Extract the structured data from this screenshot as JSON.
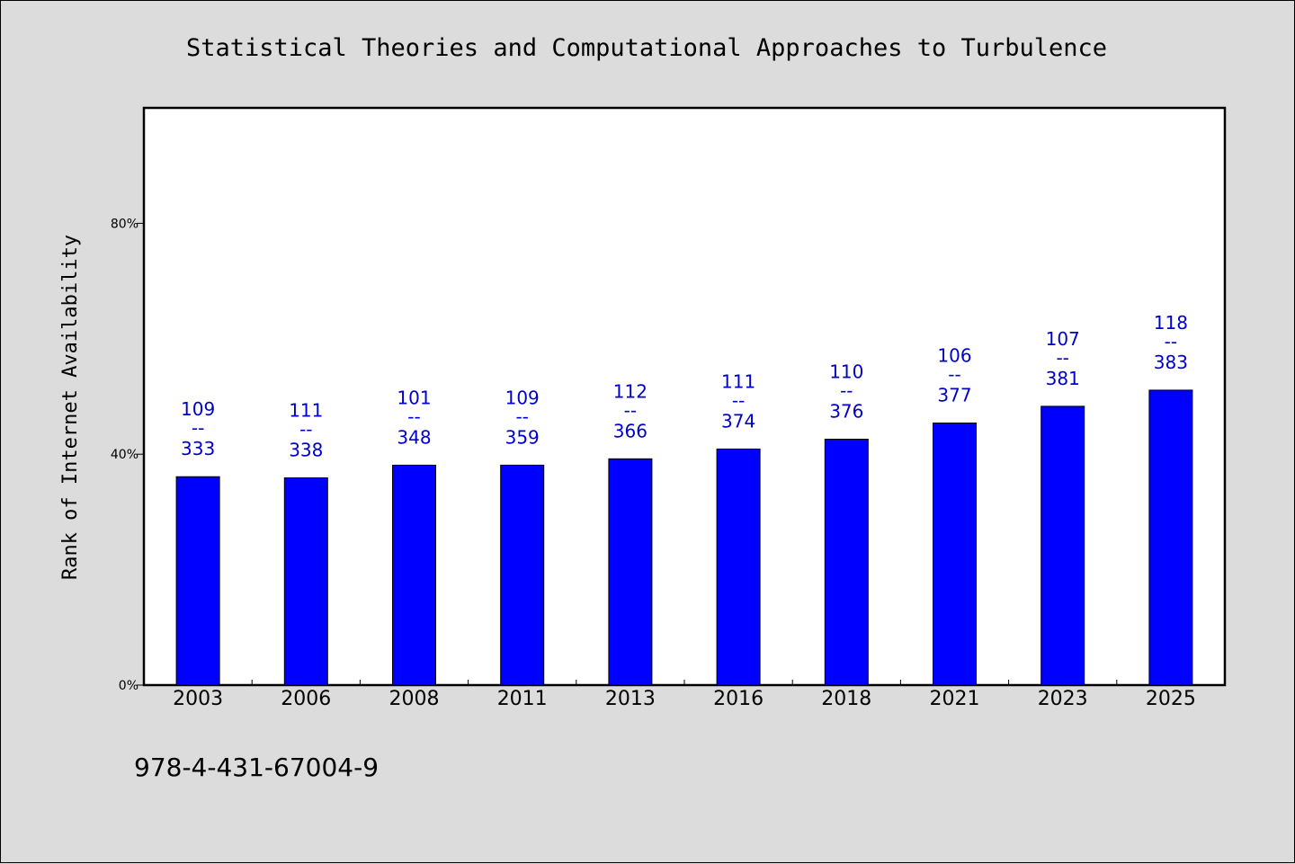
{
  "chart_data": {
    "type": "bar",
    "title": "Statistical Theories and Computational Approaches to Turbulence",
    "xlabel": "",
    "ylabel": "Rank of Internet Availability",
    "ylim": [
      0,
      100
    ],
    "yticks": [
      0,
      40,
      80
    ],
    "ytick_labels": [
      "0%",
      "40%",
      "80%"
    ],
    "grid": false,
    "categories": [
      "2003",
      "2006",
      "2008",
      "2011",
      "2013",
      "2016",
      "2018",
      "2021",
      "2023",
      "2025"
    ],
    "values": [
      36.1,
      35.9,
      38.1,
      38.1,
      39.2,
      40.9,
      42.6,
      45.4,
      48.3,
      51.1
    ],
    "data_labels": [
      {
        "top": "109",
        "sep": "--",
        "bottom": "333"
      },
      {
        "top": "111",
        "sep": "--",
        "bottom": "338"
      },
      {
        "top": "101",
        "sep": "--",
        "bottom": "348"
      },
      {
        "top": "109",
        "sep": "--",
        "bottom": "359"
      },
      {
        "top": "112",
        "sep": "--",
        "bottom": "366"
      },
      {
        "top": "111",
        "sep": "--",
        "bottom": "374"
      },
      {
        "top": "110",
        "sep": "--",
        "bottom": "376"
      },
      {
        "top": "106",
        "sep": "--",
        "bottom": "377"
      },
      {
        "top": "107",
        "sep": "--",
        "bottom": "381"
      },
      {
        "top": "118",
        "sep": "--",
        "bottom": "383"
      }
    ],
    "colors": {
      "bar": "#0000ff",
      "label": "#0000cc",
      "background": "#dcdcdc",
      "plot_background": "#ffffff"
    }
  },
  "footer": {
    "isbn": "978-4-431-67004-9"
  }
}
